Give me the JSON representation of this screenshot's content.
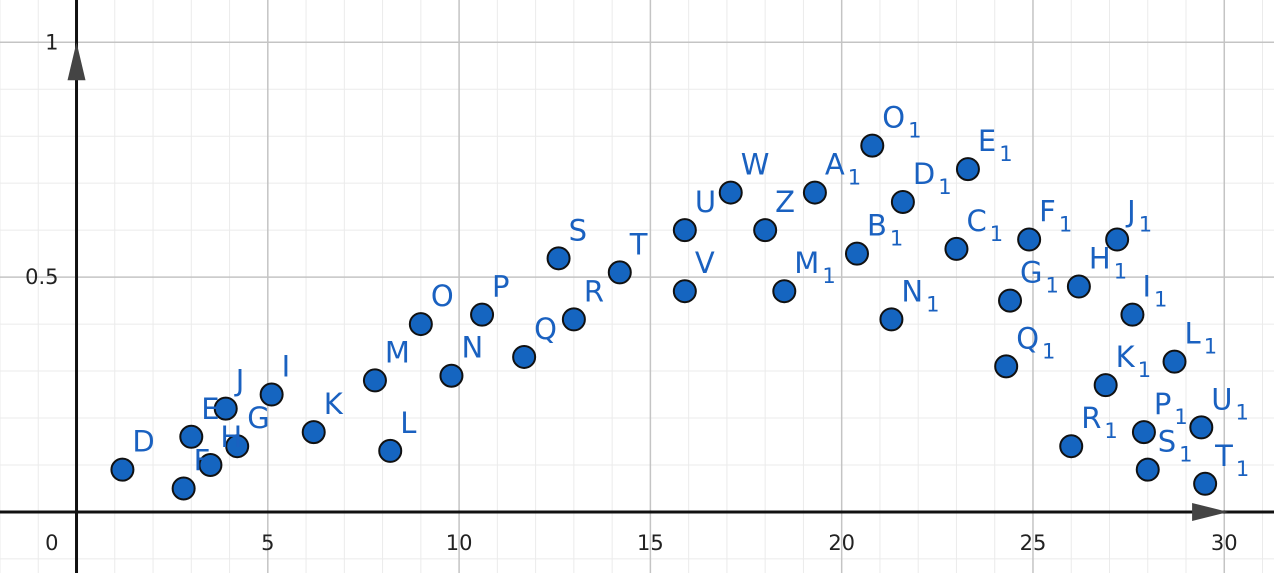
{
  "chart_data": {
    "type": "scatter",
    "title": "",
    "xlabel": "",
    "ylabel": "",
    "xlim": [
      -2,
      31.3
    ],
    "ylim": [
      -0.13,
      1.09
    ],
    "x_ticks": [
      5,
      10,
      15,
      20,
      25,
      30
    ],
    "x_tick_labels": [
      "5",
      "10",
      "15",
      "20",
      "25",
      "30"
    ],
    "y_ticks": [
      0.5,
      1
    ],
    "y_tick_labels": [
      "0.5",
      "1"
    ],
    "origin_label": "0",
    "grid": true,
    "point_color": "#1565c0",
    "label_color": "#1a61c0",
    "points": [
      {
        "name": "D",
        "x": 1.2,
        "y": 0.09
      },
      {
        "name": "E",
        "x": 3.0,
        "y": 0.16
      },
      {
        "name": "F",
        "x": 2.8,
        "y": 0.05
      },
      {
        "name": "G",
        "x": 4.2,
        "y": 0.14
      },
      {
        "name": "H",
        "x": 3.5,
        "y": 0.1
      },
      {
        "name": "I",
        "x": 5.1,
        "y": 0.25
      },
      {
        "name": "J",
        "x": 3.9,
        "y": 0.22
      },
      {
        "name": "K",
        "x": 6.2,
        "y": 0.17
      },
      {
        "name": "L",
        "x": 8.2,
        "y": 0.13
      },
      {
        "name": "M",
        "x": 7.8,
        "y": 0.28
      },
      {
        "name": "N",
        "x": 9.8,
        "y": 0.29
      },
      {
        "name": "O",
        "x": 9.0,
        "y": 0.4
      },
      {
        "name": "P",
        "x": 10.6,
        "y": 0.42
      },
      {
        "name": "Q",
        "x": 11.7,
        "y": 0.33
      },
      {
        "name": "R",
        "x": 13.0,
        "y": 0.41
      },
      {
        "name": "S",
        "x": 12.6,
        "y": 0.54
      },
      {
        "name": "T",
        "x": 14.2,
        "y": 0.51
      },
      {
        "name": "U",
        "x": 15.9,
        "y": 0.6
      },
      {
        "name": "V",
        "x": 15.9,
        "y": 0.47
      },
      {
        "name": "W",
        "x": 17.1,
        "y": 0.68
      },
      {
        "name": "Z",
        "x": 18.0,
        "y": 0.6
      },
      {
        "name": "A",
        "sub": "1",
        "x": 19.3,
        "y": 0.68
      },
      {
        "name": "B",
        "sub": "1",
        "x": 20.4,
        "y": 0.55
      },
      {
        "name": "C",
        "sub": "1",
        "x": 23.0,
        "y": 0.56
      },
      {
        "name": "D",
        "sub": "1",
        "x": 21.6,
        "y": 0.66
      },
      {
        "name": "E",
        "sub": "1",
        "x": 23.3,
        "y": 0.73
      },
      {
        "name": "F",
        "sub": "1",
        "x": 24.9,
        "y": 0.58
      },
      {
        "name": "G",
        "sub": "1",
        "x": 24.4,
        "y": 0.45
      },
      {
        "name": "H",
        "sub": "1",
        "x": 26.2,
        "y": 0.48
      },
      {
        "name": "I",
        "sub": "1",
        "x": 27.6,
        "y": 0.42
      },
      {
        "name": "J",
        "sub": "1",
        "x": 27.2,
        "y": 0.58
      },
      {
        "name": "K",
        "sub": "1",
        "x": 26.9,
        "y": 0.27
      },
      {
        "name": "L",
        "sub": "1",
        "x": 28.7,
        "y": 0.32
      },
      {
        "name": "M",
        "sub": "1",
        "x": 18.5,
        "y": 0.47
      },
      {
        "name": "N",
        "sub": "1",
        "x": 21.3,
        "y": 0.41
      },
      {
        "name": "O",
        "sub": "1",
        "x": 20.8,
        "y": 0.78
      },
      {
        "name": "P",
        "sub": "1",
        "x": 27.9,
        "y": 0.17
      },
      {
        "name": "Q",
        "sub": "1",
        "x": 24.3,
        "y": 0.31
      },
      {
        "name": "R",
        "sub": "1",
        "x": 26.0,
        "y": 0.14
      },
      {
        "name": "S",
        "sub": "1",
        "x": 28.0,
        "y": 0.09
      },
      {
        "name": "T",
        "sub": "1",
        "x": 29.5,
        "y": 0.06
      },
      {
        "name": "U",
        "sub": "1",
        "x": 29.4,
        "y": 0.18
      }
    ]
  }
}
